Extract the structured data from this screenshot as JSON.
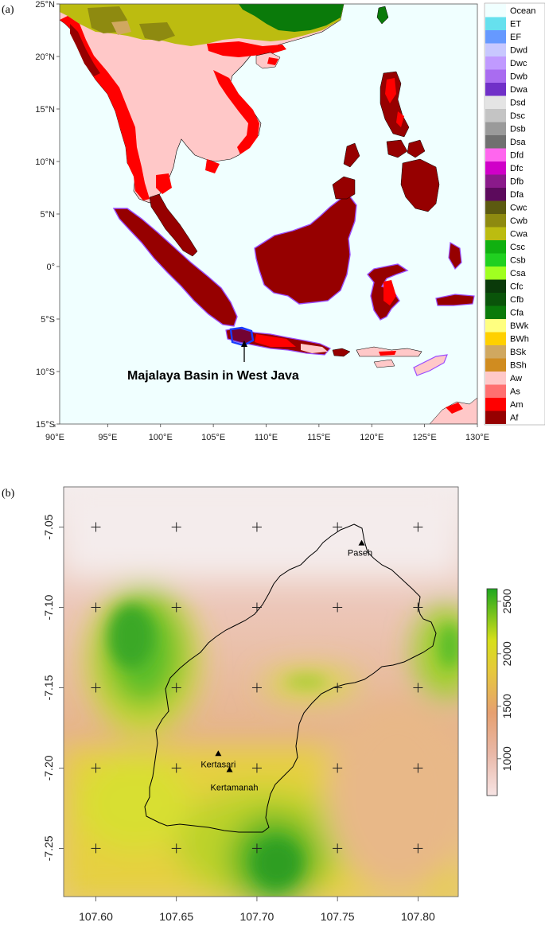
{
  "panel_a": {
    "label": "(a)",
    "annotation": "Majalaya Basin in West Java",
    "lat_ticks": [
      "25°N",
      "20°N",
      "15°N",
      "10°N",
      "5°N",
      "0°",
      "5°S",
      "10°S",
      "15°S"
    ],
    "lon_ticks": [
      "90°E",
      "95°E",
      "100°E",
      "105°E",
      "110°E",
      "115°E",
      "120°E",
      "125°E",
      "130°E"
    ],
    "legend": [
      {
        "code": "Ocean",
        "color": "#f0ffff"
      },
      {
        "code": "ET",
        "color": "#66e0ee"
      },
      {
        "code": "EF",
        "color": "#6699ff"
      },
      {
        "code": "Dwd",
        "color": "#c8c8ff"
      },
      {
        "code": "Dwc",
        "color": "#c09aff"
      },
      {
        "code": "Dwb",
        "color": "#a96cf0"
      },
      {
        "code": "Dwa",
        "color": "#7030c8"
      },
      {
        "code": "Dsd",
        "color": "#e4e4e4"
      },
      {
        "code": "Dsc",
        "color": "#c4c4c4"
      },
      {
        "code": "Dsb",
        "color": "#9a9a9a"
      },
      {
        "code": "Dsa",
        "color": "#707070"
      },
      {
        "code": "Dfd",
        "color": "#ff66ee"
      },
      {
        "code": "Dfc",
        "color": "#d000c8"
      },
      {
        "code": "Dfb",
        "color": "#8a1a8a"
      },
      {
        "code": "Dfa",
        "color": "#5c0a5c"
      },
      {
        "code": "Cwc",
        "color": "#5c5a10"
      },
      {
        "code": "Cwb",
        "color": "#8e8a10"
      },
      {
        "code": "Cwa",
        "color": "#bcbc10"
      },
      {
        "code": "Csc",
        "color": "#10b010"
      },
      {
        "code": "Csb",
        "color": "#20d020"
      },
      {
        "code": "Csa",
        "color": "#a0ff20"
      },
      {
        "code": "Cfc",
        "color": "#0a3a0a"
      },
      {
        "code": "Cfb",
        "color": "#0a540a"
      },
      {
        "code": "Cfa",
        "color": "#0a7a0a"
      },
      {
        "code": "BWk",
        "color": "#ffff80"
      },
      {
        "code": "BWh",
        "color": "#ffd000"
      },
      {
        "code": "BSk",
        "color": "#d0a860"
      },
      {
        "code": "BSh",
        "color": "#d08c20"
      },
      {
        "code": "Aw",
        "color": "#ffc8c8"
      },
      {
        "code": "As",
        "color": "#ff7070"
      },
      {
        "code": "Am",
        "color": "#ff0000"
      },
      {
        "code": "Af",
        "color": "#960000"
      }
    ]
  },
  "panel_b": {
    "label": "(b)",
    "lat_ticks": [
      "-7.05",
      "-7.10",
      "-7.15",
      "-7.20",
      "-7.25"
    ],
    "lon_ticks": [
      "107.60",
      "107.65",
      "107.70",
      "107.75",
      "107.80"
    ],
    "stations": [
      {
        "name": "Paseh",
        "lon": 107.765,
        "lat": -7.06
      },
      {
        "name": "Kertasari",
        "lon": 107.676,
        "lat": -7.191
      },
      {
        "name": "Kertamanah",
        "lon": 107.683,
        "lat": -7.201
      }
    ],
    "colorbar": {
      "ticks": [
        "2500",
        "2000",
        "1500",
        "1000"
      ],
      "min": 650,
      "max": 2620,
      "colors": [
        "#f7e4e4",
        "#e6a890",
        "#e8c43c",
        "#d6df1a",
        "#1ea71e"
      ]
    }
  },
  "chart_data": [
    {
      "type": "map",
      "x": [
        90,
        130
      ],
      "y": [
        -15,
        25
      ],
      "categories": [
        "Ocean",
        "ET",
        "EF",
        "Dwd",
        "Dwc",
        "Dwb",
        "Dwa",
        "Dsd",
        "Dsc",
        "Dsb",
        "Dsa",
        "Dfd",
        "Dfc",
        "Dfb",
        "Dfa",
        "Cwc",
        "Cwb",
        "Cwa",
        "Csc",
        "Csb",
        "Csa",
        "Cfc",
        "Cfb",
        "Cfa",
        "BWk",
        "BWh",
        "BSk",
        "BSh",
        "Aw",
        "As",
        "Am",
        "Af"
      ]
    },
    {
      "type": "heatmap",
      "x": [
        107.58,
        107.825
      ],
      "y": [
        -7.28,
        -7.025
      ],
      "grid_points_lon": [
        107.6,
        107.65,
        107.7,
        107.75,
        107.8
      ],
      "grid_points_lat": [
        -7.05,
        -7.1,
        -7.15,
        -7.2,
        -7.25
      ],
      "colorbar_range": [
        650,
        2620
      ]
    }
  ]
}
